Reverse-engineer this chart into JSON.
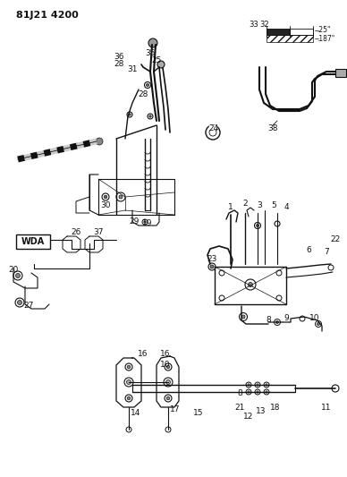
{
  "title": "81J21 4200",
  "bg_color": "#ffffff",
  "fg_color": "#111111",
  "fig_width": 3.88,
  "fig_height": 5.33,
  "dpi": 100
}
